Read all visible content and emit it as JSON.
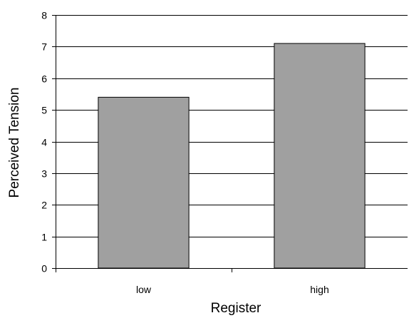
{
  "chart_data": {
    "type": "bar",
    "categories": [
      "low",
      "high"
    ],
    "values": [
      5.4,
      7.1
    ],
    "xlabel": "Register",
    "ylabel": "Perceived Tension",
    "ylim": [
      0,
      8
    ],
    "yticks": [
      "0",
      "1",
      "2",
      "3",
      "4",
      "5",
      "6",
      "7",
      "8"
    ],
    "grid": true,
    "bar_color": "#a0a0a0",
    "legend": "none"
  }
}
